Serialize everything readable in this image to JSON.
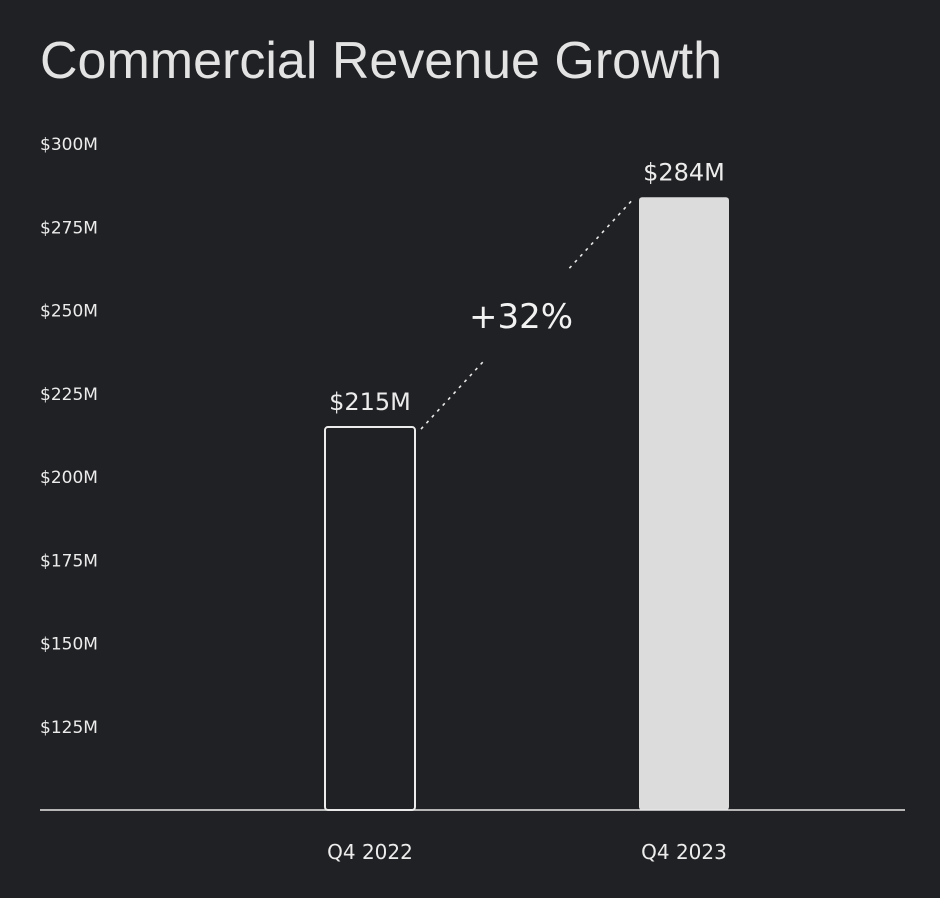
{
  "chart_data": {
    "type": "bar",
    "title": "Commercial Revenue Growth",
    "categories": [
      "Q4 2022",
      "Q4 2023"
    ],
    "values": [
      215,
      284
    ],
    "value_labels": [
      "$215M",
      "$284M"
    ],
    "unit": "$M",
    "ylim": [
      100,
      300
    ],
    "yticks": [
      125,
      150,
      175,
      200,
      225,
      250,
      275,
      300
    ],
    "ytick_labels": [
      "$125M",
      "$150M",
      "$175M",
      "$200M",
      "$225M",
      "$250M",
      "$275M",
      "$300M"
    ],
    "annotation": "+32%",
    "grid": false,
    "legend": "none",
    "colors": {
      "background": "#202124",
      "text": "#ececec",
      "outline_bar": "#ececec",
      "filled_bar": "#dcdcdc",
      "axis": "#e8e8e8"
    }
  }
}
